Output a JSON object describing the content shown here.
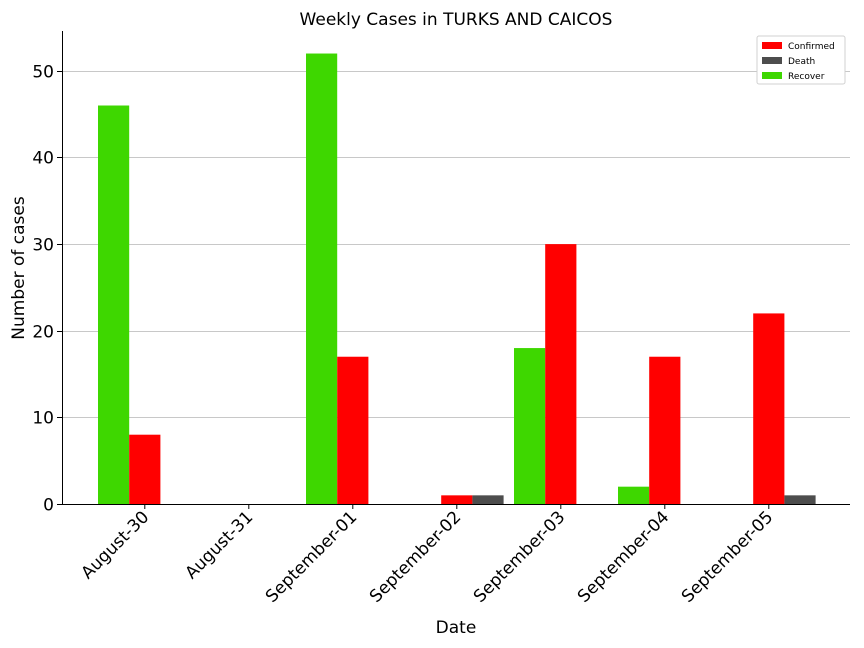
{
  "chart_data": {
    "type": "bar",
    "title": "Weekly Cases in TURKS AND CAICOS",
    "xlabel": "Date",
    "ylabel": "Number of cases",
    "categories": [
      "August-30",
      "August-31",
      "September-01",
      "September-02",
      "September-03",
      "September-04",
      "September-05"
    ],
    "series": [
      {
        "name": "Recover",
        "color": "#3ed700",
        "values": [
          46,
          0,
          52,
          0,
          18,
          2,
          0
        ]
      },
      {
        "name": "Confirmed",
        "color": "#ff0000",
        "values": [
          8,
          0,
          17,
          1,
          30,
          17,
          22
        ]
      },
      {
        "name": "Death",
        "color": "#4d4d4d",
        "values": [
          0,
          0,
          0,
          1,
          0,
          0,
          1
        ]
      }
    ],
    "legend_order": [
      "Confirmed",
      "Death",
      "Recover"
    ],
    "ylim": [
      0,
      54.6
    ],
    "yticks": [
      0,
      10,
      20,
      30,
      40,
      50
    ],
    "grid": "horizontal",
    "legend_position": "top-right"
  }
}
